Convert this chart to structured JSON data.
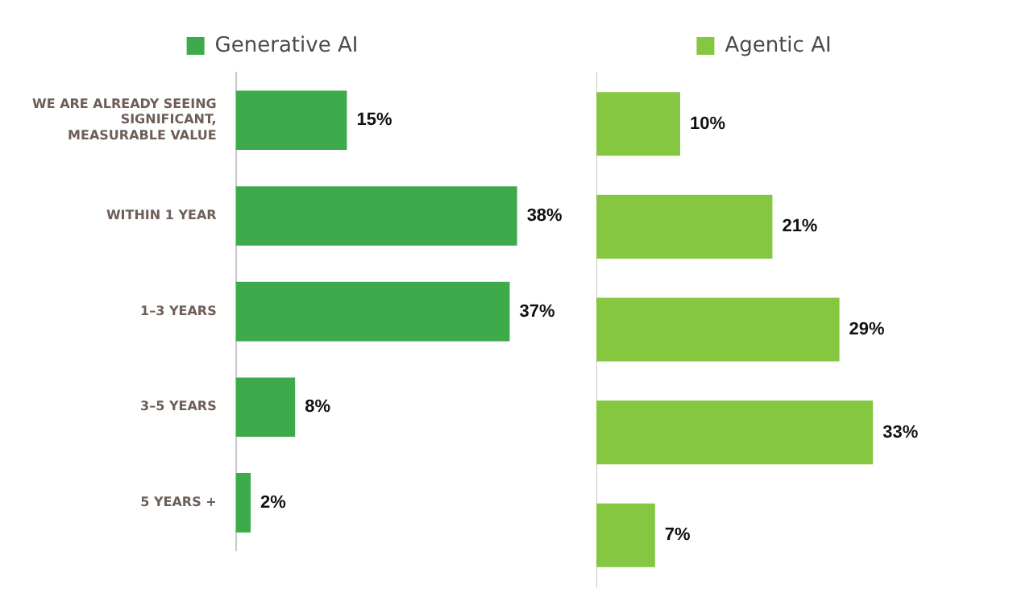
{
  "chart_data": [
    {
      "type": "bar",
      "orientation": "horizontal",
      "categories": [
        "WE ARE ALREADY SEEING SIGNIFICANT, MEASURABLE VALUE",
        "WITHIN 1 YEAR",
        "1–3 YEARS",
        "3–5 YEARS",
        "5 YEARS +"
      ],
      "legend": "top",
      "grid": false,
      "series": [
        {
          "name": "Generative AI",
          "color": "#3dab4b",
          "values": [
            15,
            38,
            37,
            8,
            2
          ],
          "value_labels": [
            "15%",
            "38%",
            "37%",
            "8%",
            "2%"
          ]
        }
      ]
    },
    {
      "type": "bar",
      "orientation": "horizontal",
      "categories": [
        null,
        null,
        null,
        null,
        null
      ],
      "legend": "top",
      "grid": false,
      "tick_labels": false,
      "series": [
        {
          "name": "Agentic AI",
          "color": "#86c742",
          "values": [
            10,
            21,
            29,
            33,
            7
          ],
          "value_labels": [
            "10%",
            "21%",
            "29%",
            "33%",
            "7%"
          ]
        }
      ]
    }
  ]
}
